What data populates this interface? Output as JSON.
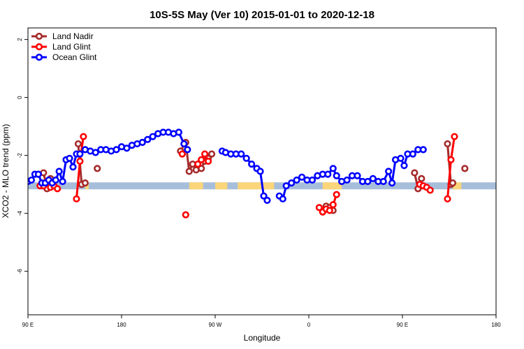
{
  "chart_data": {
    "type": "line",
    "title": "10S-5S May (Ver 10)   2015-01-01 to 2020-12-18",
    "xlabel": "Longitude",
    "ylabel": "XCO2 - MLO trend (ppm)",
    "xlim": [
      -90,
      180
    ],
    "ylim": [
      -7.5,
      2.4
    ],
    "x_ticks": [
      {
        "value": -90,
        "label": "90 E"
      },
      {
        "value": -36,
        "label": "180"
      },
      {
        "value": 18,
        "label": "90 W"
      },
      {
        "value": 72,
        "label": "0"
      },
      {
        "value": 126,
        "label": "90 E"
      },
      {
        "value": 180,
        "label": "180"
      }
    ],
    "y_ticks": [
      {
        "value": 2,
        "label": "2"
      },
      {
        "value": 0,
        "label": "0"
      },
      {
        "value": -2,
        "label": "-2"
      },
      {
        "value": -4,
        "label": "-4"
      },
      {
        "value": -6,
        "label": "-6"
      }
    ],
    "legend_position": "top-left",
    "surface_band": {
      "y_center": -3.05,
      "ocean_color": "#a7bedb",
      "land_color": "#fad57a",
      "land_segments": [
        [
          -57,
          -55
        ],
        [
          3,
          11
        ],
        [
          18,
          25
        ],
        [
          31,
          52
        ],
        [
          80,
          91
        ],
        [
          155,
          160
        ]
      ]
    },
    "series": [
      {
        "name": "Land Nadir",
        "color": "#a52a2a",
        "segments": [
          [
            [
              -81,
              -2.6
            ],
            [
              -79,
              -3.15
            ],
            [
              -77,
              -2.8
            ]
          ],
          [
            [
              -61,
              -1.6
            ],
            [
              -59,
              -3.0
            ],
            [
              -57,
              -2.95
            ]
          ],
          [
            [
              -50,
              -2.45
            ]
          ],
          [
            [
              -2,
              -1.85
            ],
            [
              1,
              -1.55
            ],
            [
              3,
              -2.55
            ],
            [
              5,
              -2.3
            ],
            [
              7,
              -2.5
            ],
            [
              10,
              -2.45
            ],
            [
              12,
              -2.2
            ],
            [
              14,
              -2.1
            ],
            [
              16,
              -1.95
            ]
          ],
          [
            [
              80,
              -3.95
            ],
            [
              82,
              -3.75
            ],
            [
              84,
              -3.8
            ],
            [
              86,
              -3.9
            ]
          ],
          [
            [
              133,
              -2.6
            ],
            [
              135,
              -3.15
            ],
            [
              137,
              -2.8
            ]
          ],
          [
            [
              152,
              -1.6
            ],
            [
              154,
              -3.0
            ],
            [
              155,
              -2.95
            ]
          ],
          [
            [
              162,
              -2.45
            ]
          ]
        ]
      },
      {
        "name": "Land Glint",
        "color": "#ff0000",
        "segments": [
          [
            [
              -83,
              -3.05
            ],
            [
              -81,
              -3.05
            ],
            [
              -79,
              -2.9
            ],
            [
              -77,
              -3.1
            ],
            [
              -75,
              -3.05
            ],
            [
              -73,
              -3.15
            ]
          ],
          [
            [
              -62,
              -3.5
            ],
            [
              -60,
              -2.2
            ],
            [
              -58,
              -1.35
            ]
          ],
          [
            [
              -1,
              -1.95
            ]
          ],
          [
            [
              1,
              -4.05
            ]
          ],
          [
            [
              8,
              -2.3
            ],
            [
              10,
              -2.15
            ],
            [
              12,
              -1.95
            ],
            [
              14,
              -2.2
            ]
          ],
          [
            [
              78,
              -3.8
            ],
            [
              80,
              -3.95
            ],
            [
              82,
              -3.85
            ],
            [
              84,
              -3.9
            ],
            [
              86,
              -3.7
            ],
            [
              88,
              -3.35
            ]
          ],
          [
            [
              136,
              -3.0
            ],
            [
              138,
              -3.05
            ],
            [
              140,
              -3.1
            ],
            [
              142,
              -3.2
            ]
          ],
          [
            [
              152,
              -3.5
            ],
            [
              154,
              -2.15
            ],
            [
              156,
              -1.35
            ]
          ]
        ]
      },
      {
        "name": "Ocean Glint",
        "color": "#0000ff",
        "segments": [
          [
            [
              -90,
              -2.9
            ],
            [
              -88,
              -2.85
            ],
            [
              -86,
              -2.65
            ],
            [
              -84,
              -2.65
            ],
            [
              -82,
              -2.95
            ],
            [
              -80,
              -2.95
            ],
            [
              -78,
              -2.85
            ],
            [
              -76,
              -2.95
            ],
            [
              -74,
              -2.85
            ],
            [
              -72,
              -2.55
            ],
            [
              -70,
              -2.9
            ],
            [
              -68,
              -2.15
            ],
            [
              -66,
              -2.1
            ],
            [
              -64,
              -2.4
            ],
            [
              -62,
              -1.95
            ],
            [
              -60,
              -1.95
            ],
            [
              -57,
              -1.8
            ],
            [
              -54,
              -1.85
            ],
            [
              -51,
              -1.9
            ],
            [
              -48,
              -1.8
            ],
            [
              -45,
              -1.8
            ],
            [
              -42,
              -1.85
            ],
            [
              -39,
              -1.8
            ],
            [
              -36,
              -1.7
            ],
            [
              -33,
              -1.75
            ],
            [
              -30,
              -1.65
            ],
            [
              -27,
              -1.6
            ],
            [
              -24,
              -1.55
            ],
            [
              -21,
              -1.45
            ],
            [
              -18,
              -1.35
            ],
            [
              -15,
              -1.25
            ],
            [
              -12,
              -1.2
            ],
            [
              -9,
              -1.2
            ],
            [
              -6,
              -1.25
            ],
            [
              -3,
              -1.2
            ],
            [
              0,
              -1.6
            ],
            [
              2,
              -1.8
            ]
          ],
          [
            [
              22,
              -1.85
            ],
            [
              24,
              -1.9
            ],
            [
              27,
              -1.95
            ],
            [
              30,
              -1.95
            ],
            [
              33,
              -1.95
            ],
            [
              36,
              -2.1
            ],
            [
              39,
              -2.3
            ],
            [
              42,
              -2.45
            ],
            [
              44,
              -2.55
            ],
            [
              46,
              -3.4
            ],
            [
              48,
              -3.55
            ]
          ],
          [
            [
              55,
              -3.4
            ],
            [
              57,
              -3.5
            ],
            [
              59,
              -3.05
            ],
            [
              62,
              -2.95
            ],
            [
              65,
              -2.85
            ],
            [
              68,
              -2.75
            ],
            [
              71,
              -2.85
            ],
            [
              74,
              -2.85
            ],
            [
              77,
              -2.7
            ],
            [
              80,
              -2.65
            ],
            [
              83,
              -2.65
            ],
            [
              86,
              -2.45
            ],
            [
              88,
              -2.7
            ],
            [
              91,
              -2.9
            ],
            [
              94,
              -2.85
            ],
            [
              97,
              -2.7
            ],
            [
              100,
              -2.7
            ],
            [
              103,
              -2.9
            ],
            [
              106,
              -2.9
            ],
            [
              109,
              -2.8
            ],
            [
              112,
              -2.9
            ],
            [
              115,
              -2.9
            ],
            [
              118,
              -2.55
            ],
            [
              120,
              -2.95
            ],
            [
              122,
              -2.15
            ],
            [
              125,
              -2.1
            ],
            [
              127,
              -2.35
            ],
            [
              129,
              -1.95
            ],
            [
              132,
              -1.95
            ],
            [
              135,
              -1.8
            ],
            [
              138,
              -1.8
            ]
          ]
        ]
      }
    ]
  }
}
